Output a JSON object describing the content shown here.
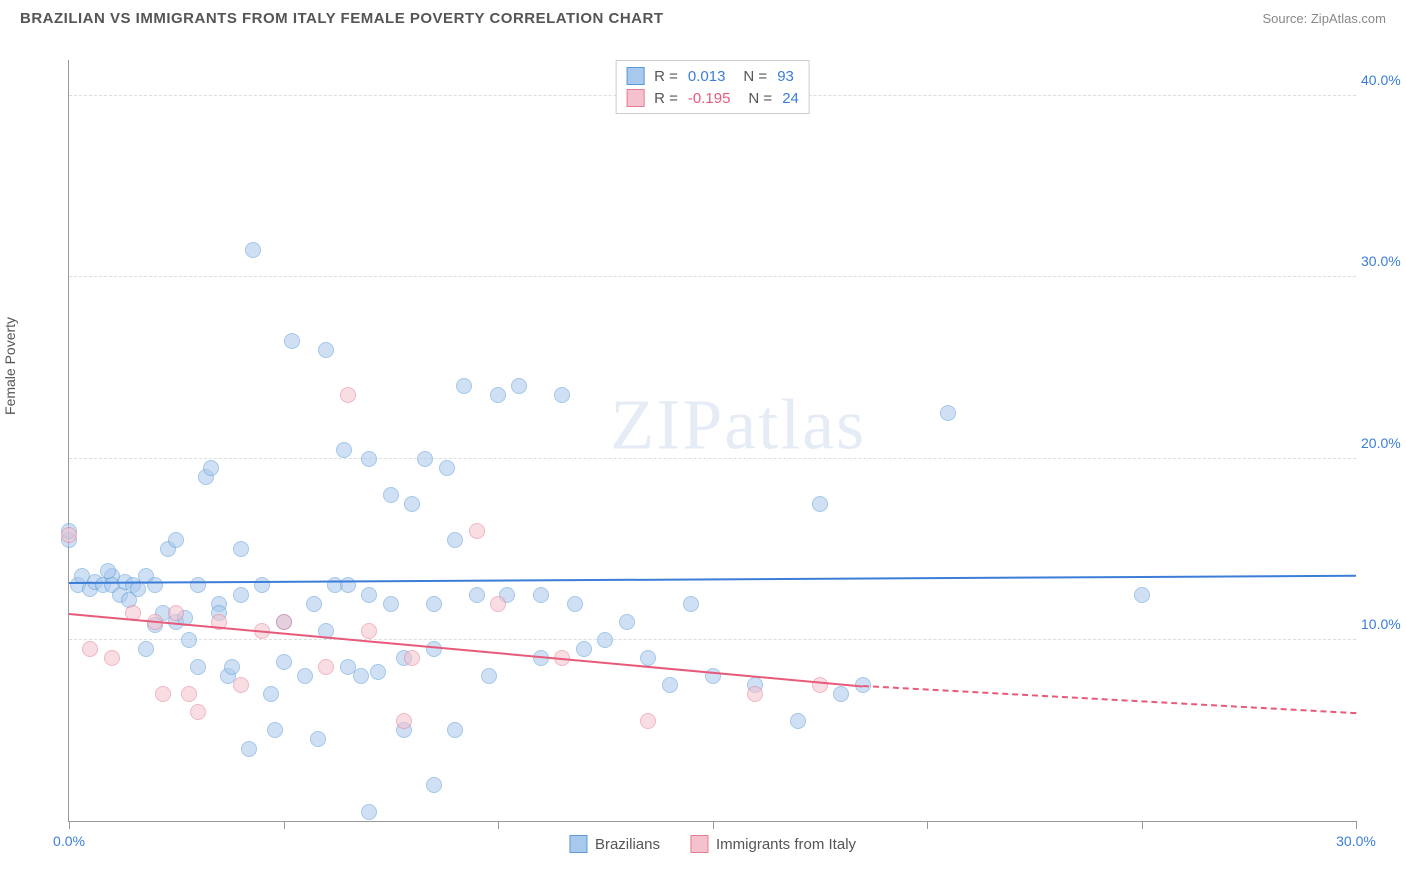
{
  "header": {
    "title": "BRAZILIAN VS IMMIGRANTS FROM ITALY FEMALE POVERTY CORRELATION CHART",
    "source_prefix": "Source: ",
    "source_name": "ZipAtlas.com"
  },
  "watermark": {
    "part1": "ZIP",
    "part2": "atlas"
  },
  "chart": {
    "type": "scatter",
    "y_axis_label": "Female Poverty",
    "xlim": [
      0,
      30
    ],
    "ylim": [
      0,
      42
    ],
    "x_ticks": [
      0,
      5,
      10,
      15,
      20,
      25,
      30
    ],
    "x_tick_labels": {
      "0": "0.0%",
      "30": "30.0%"
    },
    "x_label_color": "#3b7dd8",
    "y_gridlines": [
      10,
      20,
      30,
      40
    ],
    "y_tick_labels": {
      "10": "10.0%",
      "20": "20.0%",
      "30": "30.0%",
      "40": "40.0%"
    },
    "y_label_color": "#3b7dd8",
    "background_color": "#ffffff",
    "grid_color": "#dddddd",
    "axis_color": "#999999",
    "marker_radius": 8,
    "marker_opacity": 0.55,
    "series": [
      {
        "name": "Brazilians",
        "fill_color": "#a8c8ec",
        "stroke_color": "#5b9bd5",
        "trend_color": "#3b7dd8",
        "R": "0.013",
        "N": "93",
        "R_color": "#3b7dd8",
        "N_color": "#3b7dd8",
        "trend": {
          "x1": 0,
          "y1": 13.2,
          "x2": 30,
          "y2": 13.6
        },
        "points": [
          [
            0.0,
            15.5
          ],
          [
            0.0,
            16.0
          ],
          [
            0.2,
            13.0
          ],
          [
            0.3,
            13.5
          ],
          [
            0.5,
            12.8
          ],
          [
            0.6,
            13.2
          ],
          [
            0.8,
            13.0
          ],
          [
            1.0,
            13.5
          ],
          [
            1.0,
            13.0
          ],
          [
            1.2,
            12.5
          ],
          [
            1.3,
            13.2
          ],
          [
            1.5,
            13.0
          ],
          [
            1.6,
            12.8
          ],
          [
            1.8,
            13.5
          ],
          [
            1.8,
            9.5
          ],
          [
            2.0,
            13.0
          ],
          [
            2.2,
            11.5
          ],
          [
            2.3,
            15.0
          ],
          [
            2.5,
            15.5
          ],
          [
            2.5,
            11.0
          ],
          [
            2.7,
            11.2
          ],
          [
            2.8,
            10.0
          ],
          [
            3.0,
            8.5
          ],
          [
            3.0,
            13.0
          ],
          [
            3.2,
            19.0
          ],
          [
            3.3,
            19.5
          ],
          [
            3.5,
            12.0
          ],
          [
            3.7,
            8.0
          ],
          [
            3.8,
            8.5
          ],
          [
            4.0,
            15.0
          ],
          [
            4.0,
            12.5
          ],
          [
            4.2,
            4.0
          ],
          [
            4.3,
            31.5
          ],
          [
            4.5,
            13.0
          ],
          [
            4.7,
            7.0
          ],
          [
            4.8,
            5.0
          ],
          [
            5.0,
            11.0
          ],
          [
            5.0,
            8.8
          ],
          [
            5.2,
            26.5
          ],
          [
            5.5,
            8.0
          ],
          [
            5.7,
            12.0
          ],
          [
            5.8,
            4.5
          ],
          [
            6.0,
            26.0
          ],
          [
            6.0,
            10.5
          ],
          [
            6.2,
            13.0
          ],
          [
            6.4,
            20.5
          ],
          [
            6.5,
            8.5
          ],
          [
            6.8,
            8.0
          ],
          [
            7.0,
            20.0
          ],
          [
            7.0,
            12.5
          ],
          [
            7.0,
            0.5
          ],
          [
            7.2,
            8.2
          ],
          [
            7.5,
            18.0
          ],
          [
            7.5,
            12.0
          ],
          [
            7.8,
            9.0
          ],
          [
            7.8,
            5.0
          ],
          [
            8.0,
            17.5
          ],
          [
            8.3,
            20.0
          ],
          [
            8.5,
            12.0
          ],
          [
            8.5,
            9.5
          ],
          [
            8.5,
            2.0
          ],
          [
            8.8,
            19.5
          ],
          [
            9.0,
            15.5
          ],
          [
            9.0,
            5.0
          ],
          [
            9.2,
            24.0
          ],
          [
            9.5,
            12.5
          ],
          [
            9.8,
            8.0
          ],
          [
            10.0,
            23.5
          ],
          [
            10.2,
            12.5
          ],
          [
            10.5,
            24.0
          ],
          [
            11.0,
            12.5
          ],
          [
            11.0,
            9.0
          ],
          [
            11.5,
            23.5
          ],
          [
            11.8,
            12.0
          ],
          [
            12.0,
            9.5
          ],
          [
            12.5,
            10.0
          ],
          [
            13.0,
            11.0
          ],
          [
            13.5,
            9.0
          ],
          [
            14.0,
            7.5
          ],
          [
            14.5,
            12.0
          ],
          [
            15.0,
            8.0
          ],
          [
            16.0,
            7.5
          ],
          [
            17.0,
            5.5
          ],
          [
            17.5,
            17.5
          ],
          [
            18.0,
            7.0
          ],
          [
            18.5,
            7.5
          ],
          [
            20.5,
            22.5
          ],
          [
            25.0,
            12.5
          ],
          [
            3.5,
            11.5
          ],
          [
            2.0,
            10.8
          ],
          [
            1.4,
            12.2
          ],
          [
            0.9,
            13.8
          ],
          [
            6.5,
            13.0
          ]
        ]
      },
      {
        "name": "Immigrants from Italy",
        "fill_color": "#f4c2cd",
        "stroke_color": "#e87b94",
        "trend_color": "#e85a7a",
        "R": "-0.195",
        "N": "24",
        "R_color": "#e85a7a",
        "N_color": "#3b7dd8",
        "trend": {
          "x1": 0,
          "y1": 11.5,
          "x2": 18.5,
          "y2": 7.5
        },
        "trend_dash": {
          "x1": 18.5,
          "y1": 7.5,
          "x2": 30,
          "y2": 6.0
        },
        "points": [
          [
            0.0,
            15.8
          ],
          [
            0.5,
            9.5
          ],
          [
            1.0,
            9.0
          ],
          [
            1.5,
            11.5
          ],
          [
            2.0,
            11.0
          ],
          [
            2.2,
            7.0
          ],
          [
            2.5,
            11.5
          ],
          [
            2.8,
            7.0
          ],
          [
            3.0,
            6.0
          ],
          [
            3.5,
            11.0
          ],
          [
            4.0,
            7.5
          ],
          [
            4.5,
            10.5
          ],
          [
            5.0,
            11.0
          ],
          [
            6.0,
            8.5
          ],
          [
            6.5,
            23.5
          ],
          [
            7.0,
            10.5
          ],
          [
            7.8,
            5.5
          ],
          [
            8.0,
            9.0
          ],
          [
            9.5,
            16.0
          ],
          [
            10.0,
            12.0
          ],
          [
            11.5,
            9.0
          ],
          [
            13.5,
            5.5
          ],
          [
            16.0,
            7.0
          ],
          [
            17.5,
            7.5
          ]
        ]
      }
    ],
    "legend_top_labels": {
      "R_prefix": "R = ",
      "N_prefix": "N = "
    },
    "legend_bottom": [
      {
        "label": "Brazilians",
        "fill": "#a8c8ec",
        "stroke": "#5b9bd5"
      },
      {
        "label": "Immigrants from Italy",
        "fill": "#f4c2cd",
        "stroke": "#e87b94"
      }
    ]
  }
}
